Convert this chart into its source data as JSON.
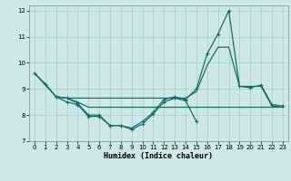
{
  "xlabel": "Humidex (Indice chaleur)",
  "bg_color": "#cce8e8",
  "grid_color": "#aacccc",
  "line_color": "#1a6e6a",
  "xlim": [
    -0.5,
    23.5
  ],
  "ylim": [
    7,
    12.2
  ],
  "yticks": [
    7,
    8,
    9,
    10,
    11,
    12
  ],
  "xticks": [
    0,
    1,
    2,
    3,
    4,
    5,
    6,
    7,
    8,
    9,
    10,
    11,
    12,
    13,
    14,
    15,
    16,
    17,
    18,
    19,
    20,
    21,
    22,
    23
  ],
  "lines": [
    {
      "x": [
        0,
        1,
        2,
        3,
        4,
        5,
        6,
        7,
        8,
        9,
        10,
        11,
        12,
        13,
        14,
        15,
        16,
        17,
        18,
        19,
        20,
        21,
        22,
        23
      ],
      "y": [
        9.6,
        9.2,
        8.7,
        8.65,
        8.45,
        8.0,
        8.0,
        7.6,
        7.6,
        7.5,
        7.75,
        8.1,
        8.6,
        8.7,
        8.6,
        9.0,
        10.35,
        11.1,
        12.0,
        9.1,
        9.05,
        9.15,
        8.4,
        8.35
      ],
      "has_markers": true
    },
    {
      "x": [
        2,
        3,
        4,
        5,
        6,
        7,
        8,
        9,
        10,
        11,
        12,
        13,
        14,
        15,
        16,
        17,
        18,
        19,
        20,
        21,
        22,
        23
      ],
      "y": [
        8.7,
        8.65,
        8.5,
        8.3,
        8.3,
        8.3,
        8.3,
        8.3,
        8.3,
        8.3,
        8.3,
        8.3,
        8.3,
        8.3,
        8.3,
        8.3,
        8.3,
        8.3,
        8.3,
        8.3,
        8.3,
        8.3
      ],
      "has_markers": false
    },
    {
      "x": [
        0,
        1,
        2,
        3,
        4,
        5,
        6,
        7,
        8,
        9,
        10,
        11,
        12,
        13,
        14,
        15,
        16,
        17,
        18,
        19,
        20,
        21,
        22,
        23
      ],
      "y": [
        9.6,
        9.15,
        8.7,
        8.65,
        8.65,
        8.65,
        8.65,
        8.65,
        8.65,
        8.65,
        8.65,
        8.65,
        8.65,
        8.65,
        8.65,
        8.9,
        9.9,
        10.6,
        10.6,
        9.1,
        9.1,
        9.1,
        8.35,
        8.3
      ],
      "has_markers": false
    },
    {
      "x": [
        2,
        3,
        4,
        5,
        6,
        7,
        8,
        9,
        10,
        11,
        12,
        13,
        14,
        15
      ],
      "y": [
        8.7,
        8.5,
        8.4,
        7.95,
        7.95,
        7.6,
        7.6,
        7.45,
        7.65,
        8.05,
        8.5,
        8.65,
        8.55,
        7.75
      ],
      "has_markers": true
    }
  ]
}
